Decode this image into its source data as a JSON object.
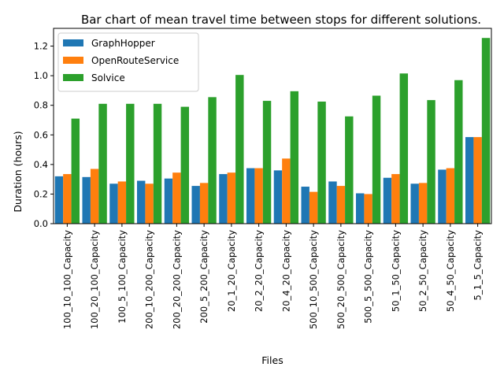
{
  "chart_data": {
    "type": "bar",
    "title": "Bar chart of mean travel time between stops for different solutions.",
    "xlabel": "Files",
    "ylabel": "Duration (hours)",
    "ylim": [
      0,
      1.32
    ],
    "yticks": [
      "0.0",
      "0.2",
      "0.4",
      "0.6",
      "0.8",
      "1.0",
      "1.2"
    ],
    "grid": false,
    "legend_position": "top-left",
    "categories": [
      "100_10_100_Capacity",
      "100_20_100_Capacity",
      "100_5_100_Capacity",
      "200_10_200_Capacity",
      "200_20_200_Capacity",
      "200_5_200_Capacity",
      "20_1_20_Capacity",
      "20_2_20_Capacity",
      "20_4_20_Capacity",
      "500_10_500_Capacity",
      "500_20_500_Capacity",
      "500_5_500_Capacity",
      "50_1_50_Capacity",
      "50_2_50_Capacity",
      "50_4_50_Capacity",
      "5_1_5_Capacity"
    ],
    "series": [
      {
        "name": "GraphHopper",
        "color": "#1f77b4",
        "values": [
          0.32,
          0.315,
          0.27,
          0.29,
          0.305,
          0.255,
          0.335,
          0.375,
          0.36,
          0.25,
          0.285,
          0.205,
          0.31,
          0.27,
          0.365,
          0.585
        ]
      },
      {
        "name": "OpenRouteService",
        "color": "#ff7f0e",
        "values": [
          0.335,
          0.37,
          0.285,
          0.27,
          0.345,
          0.275,
          0.345,
          0.375,
          0.44,
          0.215,
          0.255,
          0.2,
          0.335,
          0.275,
          0.375,
          0.585
        ]
      },
      {
        "name": "Solvice",
        "color": "#2ca02c",
        "values": [
          0.71,
          0.81,
          0.81,
          0.81,
          0.79,
          0.855,
          1.005,
          0.83,
          0.895,
          0.825,
          0.725,
          0.865,
          1.015,
          0.835,
          0.97,
          1.255
        ]
      }
    ]
  }
}
